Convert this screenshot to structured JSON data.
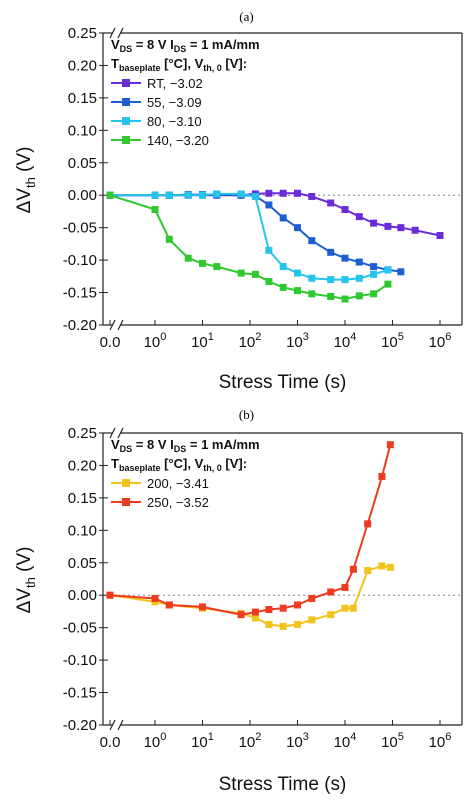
{
  "chart_data": [
    {
      "panel": "(a)",
      "type": "line",
      "annotation": {
        "line1": {
          "a": "V",
          "a_sub": "DS",
          "b": " = 8 V I",
          "b_sub": "DS",
          "c": " = 1 mA/mm"
        },
        "line2": {
          "a": "T",
          "a_sub": "baseplate",
          "b": " [°C], V",
          "b_sub": "th, 0",
          "c": " [V]:"
        }
      },
      "xlabel": "Stress Time (s)",
      "ylabel": {
        "main": "ΔV",
        "sub": "th",
        "unit": " (V)"
      },
      "x_scale": "log with zero break",
      "x_ticks": [
        {
          "label": "0.0",
          "value": 0
        },
        {
          "base": "10",
          "exp": "0",
          "value": 1
        },
        {
          "base": "10",
          "exp": "1",
          "value": 10
        },
        {
          "base": "10",
          "exp": "2",
          "value": 100
        },
        {
          "base": "10",
          "exp": "3",
          "value": 1000
        },
        {
          "base": "10",
          "exp": "4",
          "value": 10000
        },
        {
          "base": "10",
          "exp": "5",
          "value": 100000
        },
        {
          "base": "10",
          "exp": "6",
          "value": 1000000
        }
      ],
      "ylim": [
        -0.2,
        0.25
      ],
      "y_ticks": [
        "0.25",
        "0.20",
        "0.15",
        "0.10",
        "0.05",
        "0.00",
        "-0.05",
        "-0.10",
        "-0.15",
        "-0.20"
      ],
      "y_tick_values": [
        0.25,
        0.2,
        0.15,
        0.1,
        0.05,
        0.0,
        -0.05,
        -0.1,
        -0.15,
        -0.2
      ],
      "reference_line": 0,
      "legend_position": "top-left",
      "series": [
        {
          "name": "RT, −3.02",
          "color": "#6a2bd9",
          "marker": "square",
          "x": [
            0,
            1,
            2,
            5,
            10,
            20,
            65,
            130,
            250,
            500,
            1000,
            2000,
            5000,
            10000,
            20000,
            40000,
            80000,
            150000,
            300000,
            1000000
          ],
          "y": [
            0.0,
            0.0,
            0.0,
            0.0,
            0.0,
            0.0,
            0.0,
            0.002,
            0.003,
            0.003,
            0.003,
            -0.002,
            -0.012,
            -0.022,
            -0.033,
            -0.043,
            -0.048,
            -0.05,
            -0.054,
            -0.062
          ]
        },
        {
          "name": "55, −3.09",
          "color": "#1d5fd1",
          "marker": "square",
          "x": [
            0,
            1,
            2,
            5,
            10,
            20,
            65,
            130,
            250,
            500,
            1000,
            2000,
            5000,
            10000,
            20000,
            40000,
            80000,
            150000
          ],
          "y": [
            0.0,
            0.0,
            0.0,
            0.001,
            0.001,
            0.001,
            0.0,
            -0.001,
            -0.015,
            -0.035,
            -0.05,
            -0.07,
            -0.088,
            -0.097,
            -0.103,
            -0.11,
            -0.115,
            -0.118
          ]
        },
        {
          "name": "80, −3.10",
          "color": "#25c4ea",
          "marker": "square",
          "x": [
            0,
            1,
            2,
            5,
            10,
            20,
            65,
            130,
            250,
            500,
            1000,
            2000,
            5000,
            10000,
            20000,
            40000,
            80000
          ],
          "y": [
            0.0,
            0.0,
            0.0,
            0.0,
            0.0,
            0.002,
            0.002,
            -0.002,
            -0.085,
            -0.11,
            -0.12,
            -0.128,
            -0.13,
            -0.13,
            -0.128,
            -0.122,
            -0.115
          ]
        },
        {
          "name": "140, −3.20",
          "color": "#2fc82f",
          "marker": "square",
          "x": [
            0,
            1,
            2,
            5,
            10,
            20,
            65,
            130,
            250,
            500,
            1000,
            2000,
            5000,
            10000,
            20000,
            40000,
            80000
          ],
          "y": [
            0.0,
            -0.022,
            -0.068,
            -0.097,
            -0.105,
            -0.11,
            -0.12,
            -0.122,
            -0.133,
            -0.142,
            -0.147,
            -0.152,
            -0.156,
            -0.16,
            -0.155,
            -0.152,
            -0.137
          ]
        }
      ]
    },
    {
      "panel": "(b)",
      "type": "line",
      "annotation": {
        "line1": {
          "a": "V",
          "a_sub": "DS",
          "b": " = 8 V I",
          "b_sub": "DS",
          "c": " = 1 mA/mm"
        },
        "line2": {
          "a": "T",
          "a_sub": "baseplate",
          "b": " [°C], V",
          "b_sub": "th, 0",
          "c": " [V]:"
        }
      },
      "xlabel": "Stress Time (s)",
      "ylabel": {
        "main": "ΔV",
        "sub": "th",
        "unit": " (V)"
      },
      "x_scale": "log with zero break",
      "x_ticks": [
        {
          "label": "0.0",
          "value": 0
        },
        {
          "base": "10",
          "exp": "0",
          "value": 1
        },
        {
          "base": "10",
          "exp": "1",
          "value": 10
        },
        {
          "base": "10",
          "exp": "2",
          "value": 100
        },
        {
          "base": "10",
          "exp": "3",
          "value": 1000
        },
        {
          "base": "10",
          "exp": "4",
          "value": 10000
        },
        {
          "base": "10",
          "exp": "5",
          "value": 100000
        },
        {
          "base": "10",
          "exp": "6",
          "value": 1000000
        }
      ],
      "ylim": [
        -0.2,
        0.25
      ],
      "y_ticks": [
        "0.25",
        "0.20",
        "0.15",
        "0.10",
        "0.05",
        "0.00",
        "-0.05",
        "-0.10",
        "-0.15",
        "-0.20"
      ],
      "y_tick_values": [
        0.25,
        0.2,
        0.15,
        0.1,
        0.05,
        0.0,
        -0.05,
        -0.1,
        -0.15,
        -0.2
      ],
      "reference_line": 0,
      "legend_position": "top-left",
      "series": [
        {
          "name": "200, −3.41",
          "color": "#f2c31c",
          "marker": "square",
          "x": [
            0,
            1,
            2,
            10,
            65,
            130,
            250,
            500,
            1000,
            2000,
            5000,
            10000,
            15000,
            30000,
            60000,
            90000
          ],
          "y": [
            0.0,
            -0.01,
            -0.015,
            -0.02,
            -0.028,
            -0.035,
            -0.045,
            -0.048,
            -0.045,
            -0.038,
            -0.03,
            -0.02,
            -0.02,
            0.038,
            0.045,
            0.043
          ]
        },
        {
          "name": "250, −3.52",
          "color": "#ee3b1f",
          "marker": "square",
          "x": [
            0,
            1,
            2,
            10,
            65,
            130,
            250,
            500,
            1000,
            2000,
            5000,
            10000,
            15000,
            30000,
            60000,
            90000
          ],
          "y": [
            0.0,
            -0.005,
            -0.015,
            -0.018,
            -0.03,
            -0.026,
            -0.022,
            -0.02,
            -0.015,
            -0.005,
            0.005,
            0.012,
            0.04,
            0.11,
            0.183,
            0.232
          ]
        }
      ]
    }
  ]
}
